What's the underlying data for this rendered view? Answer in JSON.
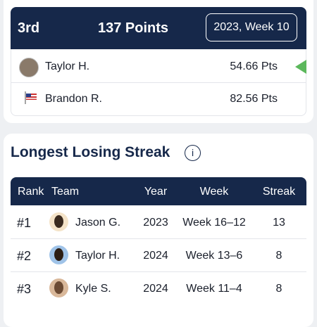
{
  "matchup": {
    "rank": "3rd",
    "points": "137 Points",
    "period": "2023, Week 10",
    "players": [
      {
        "name": "Taylor H.",
        "points": "54.66 Pts"
      },
      {
        "name": "Brandon R.",
        "points": "82.56 Pts"
      }
    ]
  },
  "streak": {
    "title": "Longest Losing Streak",
    "info_icon": "i",
    "table": {
      "headers": [
        "Rank",
        "Team",
        "Year",
        "Week",
        "Streak"
      ],
      "rows": [
        [
          "#1",
          "Jason G.",
          "2023",
          "Week 16–12",
          "13"
        ],
        [
          "#2",
          "Taylor H.",
          "2024",
          "Week 13–6",
          "8"
        ],
        [
          "#3",
          "Kyle S.",
          "2024",
          "Week 11–4",
          "8"
        ]
      ]
    }
  }
}
